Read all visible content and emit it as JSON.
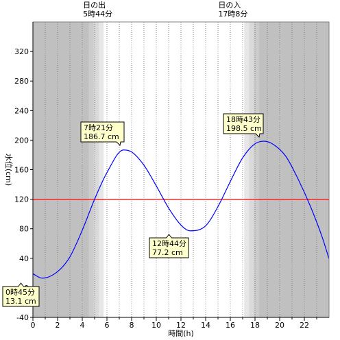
{
  "chart_data": {
    "type": "line",
    "xlabel": "時間(h)",
    "ylabel": "水位(cm)",
    "xlim": [
      0,
      24
    ],
    "ylim": [
      -40,
      360
    ],
    "x_ticks": [
      0,
      2,
      4,
      6,
      8,
      10,
      12,
      14,
      16,
      18,
      20,
      22
    ],
    "y_ticks": [
      -40,
      0,
      40,
      80,
      120,
      160,
      200,
      240,
      280,
      320
    ],
    "grid": "x-dotted",
    "reference_line": {
      "y": 120,
      "color": "#ff0000"
    },
    "line_color": "#0000ff",
    "series": [
      {
        "x": [
          0,
          0.75,
          2,
          3,
          4,
          5,
          6,
          7.35,
          8,
          9,
          10,
          11,
          12,
          12.73,
          14,
          15,
          16,
          17,
          18,
          18.72,
          19.5,
          20.5,
          21.5,
          22.5,
          23.5,
          24
        ],
        "values": [
          19,
          13.1,
          22,
          42,
          78,
          120,
          156,
          186.7,
          184,
          166,
          138,
          108,
          85,
          77.2,
          84,
          110,
          144,
          176,
          195,
          198.5,
          194,
          178,
          147,
          110,
          66,
          39
        ]
      }
    ],
    "annotations": [
      {
        "label": "0時45分",
        "value": "13.1 cm",
        "x": 0.75,
        "y": 13.1
      },
      {
        "label": "7時21分",
        "value": "186.7 cm",
        "x": 7.35,
        "y": 186.7
      },
      {
        "label": "12時44分",
        "value": "77.2 cm",
        "x": 12.73,
        "y": 77.2
      },
      {
        "label": "18時43分",
        "value": "198.5 cm",
        "x": 18.72,
        "y": 198.5
      }
    ],
    "sunrise": {
      "title": "日の出",
      "time": "5時44分",
      "hour": 5.73
    },
    "sunset": {
      "title": "日の入",
      "time": "17時8分",
      "hour": 17.13
    },
    "shading": {
      "night_color": "#c0c0c0",
      "twilight_colors": [
        "#cccccc",
        "#d9d9d9",
        "#e6e6e6"
      ],
      "day_color": "#ffffff"
    }
  }
}
